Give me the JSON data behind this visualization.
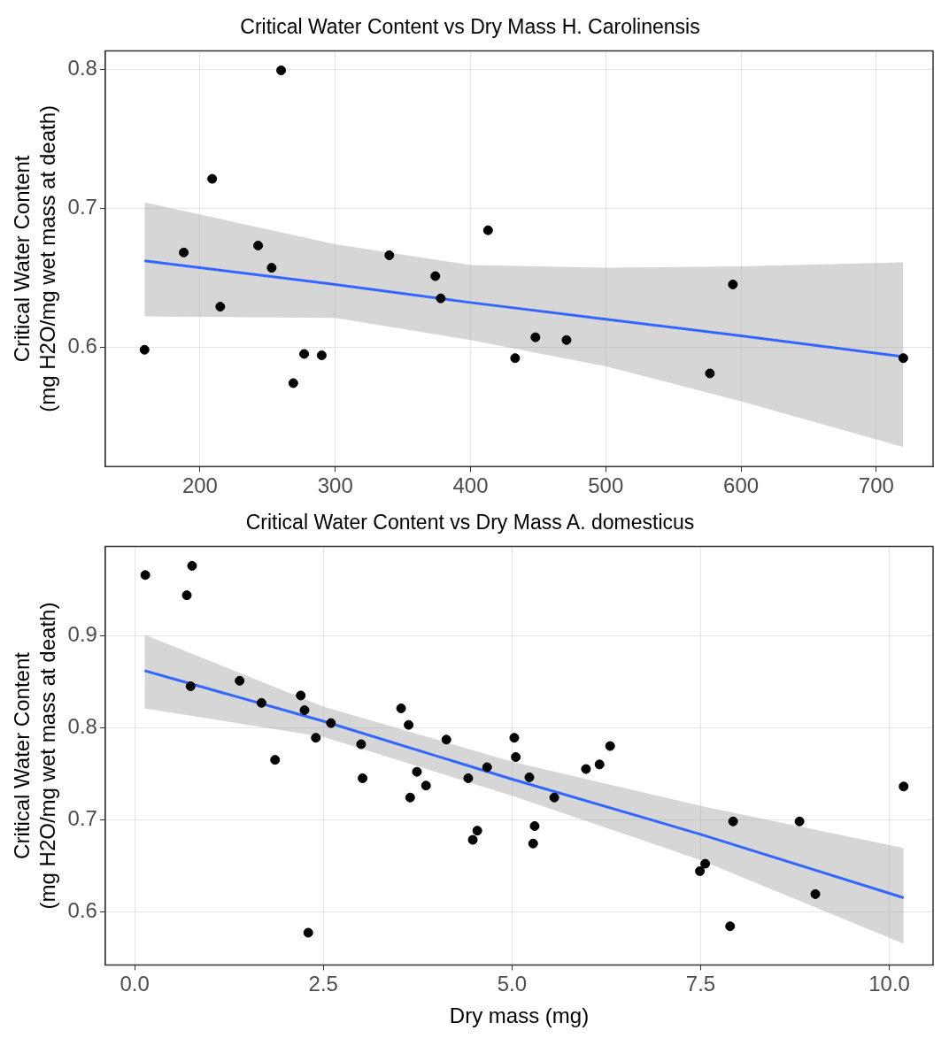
{
  "chart_data": [
    {
      "type": "scatter",
      "title": "Critical Water Content vs Dry Mass H. Carolinensis",
      "ylabel": "Critical Water Content\n(mg H2O/mg wet mass at death)",
      "xlim": [
        130,
        742
      ],
      "xticks": [
        200,
        300,
        400,
        500,
        600,
        700
      ],
      "ylim": [
        0.514,
        0.813
      ],
      "yticks": [
        0.6,
        0.7,
        0.8
      ],
      "grid": true,
      "legend": false,
      "series": [
        {
          "type": "line",
          "marker": "none",
          "color": "#3366ff",
          "x": [
            159,
            300,
            400,
            500,
            600,
            720
          ],
          "values": [
            0.662,
            0.645,
            0.632,
            0.62,
            0.608,
            0.593
          ],
          "lower": [
            0.622,
            0.621,
            0.605,
            0.586,
            0.561,
            0.528
          ],
          "upper": [
            0.704,
            0.674,
            0.659,
            0.657,
            0.658,
            0.661
          ]
        },
        {
          "type": "scatter",
          "marker": "circle",
          "color": "#000000",
          "x": [
            159,
            188,
            209,
            215,
            243,
            253,
            260,
            269,
            277,
            290,
            340,
            374,
            378,
            413,
            433,
            448,
            471,
            577,
            594,
            720
          ],
          "values": [
            0.598,
            0.668,
            0.721,
            0.629,
            0.673,
            0.657,
            0.799,
            0.574,
            0.595,
            0.594,
            0.666,
            0.651,
            0.635,
            0.684,
            0.592,
            0.607,
            0.605,
            0.581,
            0.645,
            0.592
          ]
        }
      ]
    },
    {
      "type": "scatter",
      "title": "Critical Water Content vs Dry Mass A. domesticus",
      "xlabel": "Dry mass (mg)",
      "ylabel": "Critical Water Content\n(mg H2O/mg wet mass at death)",
      "xlim": [
        -0.39,
        10.58
      ],
      "xticks": [
        {
          "value": 0,
          "label": "0.0"
        },
        2.5,
        {
          "value": 5,
          "label": "5.0"
        },
        7.5,
        {
          "value": 10,
          "label": "10.0"
        }
      ],
      "ylim": [
        0.542,
        0.997
      ],
      "yticks": [
        0.6,
        0.7,
        0.8,
        0.9
      ],
      "grid": true,
      "legend": false,
      "series": [
        {
          "type": "line",
          "marker": "none",
          "color": "#3366ff",
          "x": [
            0.13,
            2.5,
            5,
            7.5,
            10.19
          ],
          "values": [
            0.862,
            0.807,
            0.744,
            0.684,
            0.615
          ],
          "lower": [
            0.821,
            0.79,
            0.726,
            0.656,
            0.565
          ],
          "upper": [
            0.901,
            0.823,
            0.763,
            0.715,
            0.669
          ]
        },
        {
          "type": "scatter",
          "marker": "circle",
          "color": "#000000",
          "x": [
            0.14,
            0.76,
            0.69,
            0.74,
            1.39,
            1.68,
            1.86,
            2.2,
            2.25,
            2.3,
            2.4,
            2.6,
            3.0,
            3.02,
            3.53,
            3.63,
            4.13,
            3.74,
            3.86,
            3.65,
            4.42,
            4.67,
            4.54,
            4.48,
            5.03,
            5.05,
            5.23,
            5.56,
            5.3,
            5.28,
            5.98,
            6.16,
            6.3,
            7.93,
            7.56,
            7.49,
            7.89,
            8.81,
            9.02,
            10.19
          ],
          "values": [
            0.966,
            0.976,
            0.944,
            0.845,
            0.851,
            0.827,
            0.765,
            0.835,
            0.819,
            0.577,
            0.789,
            0.805,
            0.782,
            0.745,
            0.821,
            0.803,
            0.787,
            0.752,
            0.737,
            0.724,
            0.745,
            0.757,
            0.688,
            0.678,
            0.789,
            0.768,
            0.746,
            0.724,
            0.693,
            0.674,
            0.755,
            0.76,
            0.78,
            0.698,
            0.652,
            0.644,
            0.584,
            0.698,
            0.619,
            0.736
          ]
        }
      ]
    }
  ]
}
